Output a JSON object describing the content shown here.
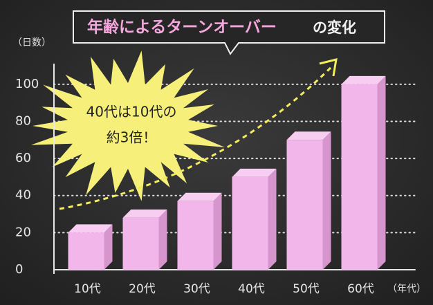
{
  "chart_data": {
    "type": "bar",
    "title": [
      "年齢によるターンオーバー",
      "の変化"
    ],
    "y_label": "（日数）",
    "x_label": "（年代）",
    "annotation": [
      "40代は10代の",
      "約3倍！"
    ],
    "categories": [
      "10代",
      "20代",
      "30代",
      "40代",
      "50代",
      "60代"
    ],
    "values": [
      20,
      28,
      37,
      50,
      70,
      100
    ],
    "color": "#f2b6ea",
    "ylim": [
      0,
      110
    ],
    "yticks": [
      0,
      20,
      40,
      60,
      80,
      100
    ],
    "grid": true
  }
}
